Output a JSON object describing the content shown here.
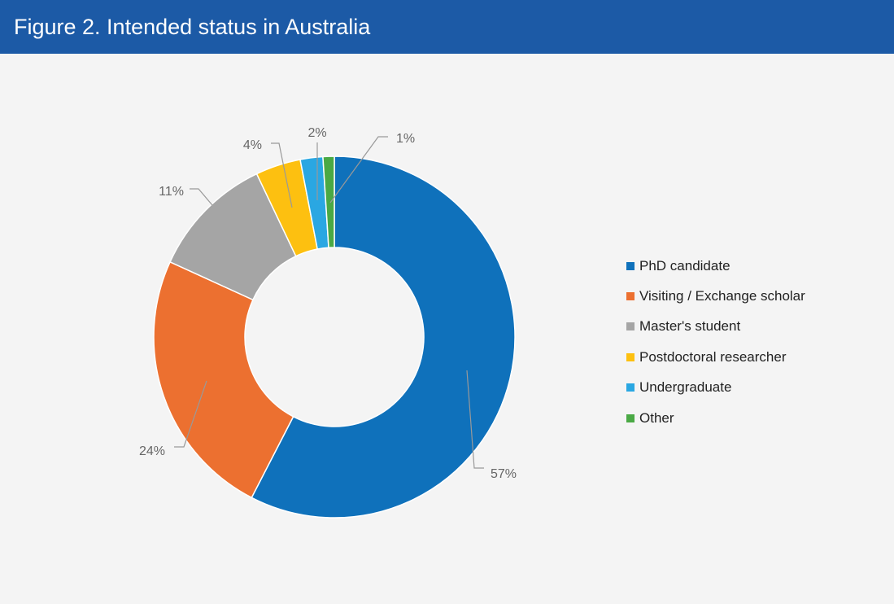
{
  "header": {
    "title": "Figure 2. Intended status in Australia",
    "background": "#1c5aa6"
  },
  "chart_data": {
    "type": "pie",
    "donut": true,
    "categories": [
      "PhD candidate",
      "Visiting / Exchange scholar",
      "Master's student",
      "Postdoctoral researcher",
      "Undergraduate",
      "Other"
    ],
    "values": [
      57,
      24,
      11,
      4,
      2,
      1
    ],
    "data_labels": [
      "57%",
      "24%",
      "11%",
      "4%",
      "2%",
      "1%"
    ],
    "colors": [
      "#0f71bb",
      "#ec7030",
      "#a5a5a5",
      "#fdc010",
      "#2aa7e2",
      "#4aa945"
    ],
    "legend_position": "right",
    "grid": false
  }
}
